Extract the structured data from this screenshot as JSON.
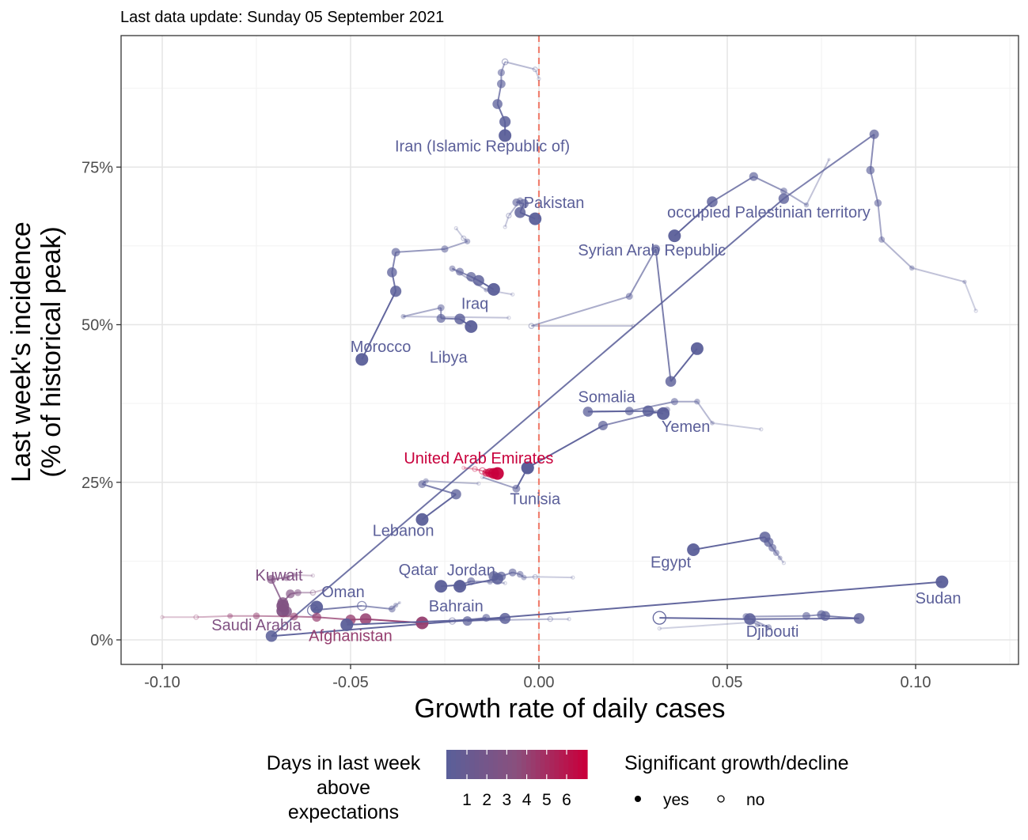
{
  "caption": "Last data update: Sunday 05 September 2021",
  "colors": {
    "low": "#5b5f99",
    "mid": "#8a4f7d",
    "high": "#c8003c",
    "threshold_line": "#f08070",
    "grid_major": "#e6e6e6",
    "grid_minor": "#f2f2f2",
    "panel_border": "#333333"
  },
  "chart_data": {
    "type": "scatter",
    "title": "",
    "xlabel": "Growth rate of daily cases",
    "ylabel_lines": [
      "Last week's incidence",
      "(% of historical peak)"
    ],
    "xlim": [
      -0.12,
      0.127
    ],
    "ylim": [
      -0.04,
      0.96
    ],
    "x_ticks": [
      -0.1,
      -0.05,
      0.0,
      0.05,
      0.1
    ],
    "x_tick_labels": [
      "-0.10",
      "-0.05",
      "0.00",
      "0.05",
      "0.10"
    ],
    "y_ticks": [
      0,
      0.25,
      0.5,
      0.75
    ],
    "y_tick_labels": [
      "0%",
      "25%",
      "50%",
      "75%"
    ],
    "grid": true,
    "threshold_x": 0.0,
    "legend": {
      "position": "bottom",
      "color_title_lines": [
        "Days in last week",
        "above",
        "expectations"
      ],
      "color_labels": [
        "1",
        "2",
        "3",
        "4",
        "5",
        "6"
      ],
      "shape_title": "Significant growth/decline",
      "shape_labels": [
        "yes",
        "no"
      ]
    },
    "series": [
      {
        "name": "Iran (Islamic Republic of)",
        "days": 1,
        "label_text": "Iran (Islamic Republic of)",
        "label_at": [
          -0.015,
          0.775
        ],
        "points": [
          [
            0.0,
            0.89,
            0
          ],
          [
            -0.001,
            0.905,
            0
          ],
          [
            -0.009,
            0.917,
            0
          ],
          [
            -0.01,
            0.9,
            1
          ],
          [
            -0.01,
            0.882,
            1
          ],
          [
            -0.011,
            0.85,
            1
          ],
          [
            -0.009,
            0.822,
            1
          ],
          [
            -0.009,
            0.8,
            1
          ]
        ]
      },
      {
        "name": "Pakistan",
        "days": 1,
        "label_text": "Pakistan",
        "label_at": [
          0.004,
          0.685
        ],
        "points": [
          [
            -0.009,
            0.655,
            0
          ],
          [
            -0.008,
            0.673,
            0
          ],
          [
            -0.005,
            0.697,
            1
          ],
          [
            -0.006,
            0.694,
            1
          ],
          [
            -0.004,
            0.692,
            1
          ],
          [
            -0.005,
            0.678,
            1
          ],
          [
            -0.001,
            0.668,
            1
          ]
        ]
      },
      {
        "name": "occupied Palestinian territory",
        "days": 1,
        "label_text": "occupied Palestinian territory",
        "label_at": [
          0.061,
          0.67
        ],
        "points": [
          [
            0.077,
            0.762,
            1
          ],
          [
            0.071,
            0.69,
            1
          ],
          [
            0.065,
            0.712,
            1
          ],
          [
            0.057,
            0.735,
            1
          ],
          [
            0.046,
            0.695,
            1
          ],
          [
            0.036,
            0.641,
            1
          ]
        ]
      },
      {
        "name": "Sudan",
        "days": 1,
        "label_text": "Sudan",
        "label_at": [
          0.106,
          0.058
        ],
        "points": [
          [
            0.116,
            0.522,
            0
          ],
          [
            0.113,
            0.568,
            1
          ],
          [
            0.099,
            0.59,
            1
          ],
          [
            0.091,
            0.635,
            1
          ],
          [
            0.09,
            0.693,
            1
          ],
          [
            0.088,
            0.745,
            1
          ],
          [
            0.089,
            0.802,
            1
          ],
          [
            0.065,
            0.7,
            1
          ],
          [
            -0.071,
            0.006,
            1
          ],
          [
            0.107,
            0.092,
            1
          ]
        ]
      },
      {
        "name": "Syrian Arab Republic",
        "days": 1,
        "label_text": "Syrian Arab Republic",
        "label_at": [
          0.03,
          0.61
        ],
        "points": [
          [
            0.025,
            0.498,
            0
          ],
          [
            -0.002,
            0.498,
            0
          ],
          [
            0.024,
            0.545,
            1
          ],
          [
            0.031,
            0.62,
            1
          ],
          [
            0.035,
            0.41,
            1
          ],
          [
            0.042,
            0.462,
            1
          ]
        ]
      },
      {
        "name": "Morocco",
        "days": 1,
        "label_text": "Morocco",
        "label_at": [
          -0.042,
          0.457
        ],
        "points": [
          [
            -0.022,
            0.653,
            0
          ],
          [
            -0.02,
            0.637,
            0
          ],
          [
            -0.019,
            0.632,
            1
          ],
          [
            -0.025,
            0.62,
            1
          ],
          [
            -0.038,
            0.615,
            1
          ],
          [
            -0.039,
            0.583,
            1
          ],
          [
            -0.038,
            0.553,
            1
          ],
          [
            -0.047,
            0.445,
            1
          ]
        ]
      },
      {
        "name": "Iraq",
        "days": 1,
        "label_text": "Iraq",
        "label_at": [
          -0.017,
          0.525
        ],
        "points": [
          [
            -0.007,
            0.548,
            0
          ],
          [
            -0.014,
            0.555,
            1
          ],
          [
            -0.023,
            0.589,
            1
          ],
          [
            -0.021,
            0.584,
            1
          ],
          [
            -0.018,
            0.576,
            1
          ],
          [
            -0.016,
            0.57,
            1
          ],
          [
            -0.012,
            0.556,
            1
          ]
        ]
      },
      {
        "name": "Libya",
        "days": 1,
        "label_text": "Libya",
        "label_at": [
          -0.024,
          0.44
        ],
        "points": [
          [
            -0.008,
            0.511,
            0
          ],
          [
            -0.036,
            0.513,
            1
          ],
          [
            -0.026,
            0.527,
            1
          ],
          [
            -0.026,
            0.51,
            1
          ],
          [
            -0.021,
            0.509,
            1
          ],
          [
            -0.018,
            0.497,
            1
          ]
        ]
      },
      {
        "name": "Somalia",
        "days": 1,
        "label_text": "Somalia",
        "label_at": [
          0.018,
          0.377
        ],
        "points": [
          [
            0.059,
            0.334,
            0
          ],
          [
            0.046,
            0.344,
            1
          ],
          [
            0.042,
            0.378,
            1
          ],
          [
            0.036,
            0.378,
            1
          ],
          [
            0.024,
            0.363,
            1
          ],
          [
            0.013,
            0.362,
            1
          ],
          [
            0.029,
            0.363,
            1
          ],
          [
            0.033,
            0.359,
            1
          ]
        ]
      },
      {
        "name": "Yemen",
        "days": 1,
        "label_text": "Yemen",
        "label_at": [
          0.039,
          0.33
        ],
        "points": [
          [
            0.028,
            0.362,
            0
          ],
          [
            0.034,
            0.365,
            1
          ],
          [
            0.017,
            0.34,
            1
          ],
          [
            -0.003,
            0.273,
            1
          ]
        ]
      },
      {
        "name": "United Arab Emirates",
        "days": 6,
        "label_text": "United Arab Emirates",
        "label_at": [
          -0.016,
          0.28
        ],
        "points": [
          [
            -0.02,
            0.273,
            0
          ],
          [
            -0.017,
            0.271,
            0
          ],
          [
            -0.015,
            0.268,
            0
          ],
          [
            -0.014,
            0.265,
            1
          ],
          [
            -0.013,
            0.265,
            1
          ],
          [
            -0.012,
            0.264,
            1
          ],
          [
            -0.011,
            0.264,
            1
          ]
        ]
      },
      {
        "name": "Tunisia",
        "days": 1,
        "label_text": "Tunisia",
        "label_at": [
          -0.001,
          0.215
        ],
        "points": [
          [
            -0.015,
            0.258,
            0
          ],
          [
            -0.006,
            0.24,
            1
          ],
          [
            -0.003,
            0.273,
            1
          ]
        ]
      },
      {
        "name": "Lebanon",
        "days": 1,
        "label_text": "Lebanon",
        "label_at": [
          -0.036,
          0.165
        ],
        "points": [
          [
            -0.016,
            0.248,
            0
          ],
          [
            -0.03,
            0.252,
            1
          ],
          [
            -0.031,
            0.247,
            1
          ],
          [
            -0.022,
            0.231,
            1
          ],
          [
            -0.031,
            0.191,
            1
          ]
        ]
      },
      {
        "name": "Egypt",
        "days": 1,
        "label_text": "Egypt",
        "label_at": [
          0.035,
          0.115
        ],
        "points": [
          [
            0.065,
            0.122,
            0
          ],
          [
            0.064,
            0.13,
            1
          ],
          [
            0.063,
            0.138,
            1
          ],
          [
            0.062,
            0.146,
            1
          ],
          [
            0.061,
            0.155,
            1
          ],
          [
            0.06,
            0.163,
            1
          ],
          [
            0.041,
            0.143,
            1
          ]
        ]
      },
      {
        "name": "Qatar",
        "days": 1,
        "label_text": "Qatar",
        "label_at": [
          -0.032,
          0.103
        ],
        "points": [
          [
            -0.009,
            0.09,
            0
          ],
          [
            -0.013,
            0.092,
            1
          ],
          [
            -0.018,
            0.093,
            1
          ],
          [
            -0.021,
            0.087,
            1
          ],
          [
            -0.026,
            0.085,
            1
          ]
        ]
      },
      {
        "name": "Jordan",
        "days": 1,
        "label_text": "Jordan",
        "label_at": [
          -0.018,
          0.102
        ],
        "points": [
          [
            0.009,
            0.099,
            0
          ],
          [
            -0.001,
            0.1,
            0
          ],
          [
            -0.004,
            0.099,
            1
          ],
          [
            -0.005,
            0.104,
            1
          ],
          [
            -0.007,
            0.107,
            1
          ],
          [
            -0.01,
            0.101,
            1
          ],
          [
            -0.012,
            0.101,
            1
          ],
          [
            -0.011,
            0.097,
            1
          ],
          [
            -0.021,
            0.085,
            1
          ]
        ]
      },
      {
        "name": "Oman",
        "days": 1,
        "label_text": "Oman",
        "label_at": [
          -0.052,
          0.068
        ],
        "points": [
          [
            -0.037,
            0.059,
            1
          ],
          [
            -0.038,
            0.055,
            1
          ],
          [
            -0.039,
            0.049,
            1
          ],
          [
            -0.047,
            0.054,
            0
          ],
          [
            -0.06,
            0.047,
            0
          ],
          [
            -0.059,
            0.052,
            1
          ]
        ]
      },
      {
        "name": "Kuwait",
        "days": 3,
        "label_text": "Kuwait",
        "label_at": [
          -0.069,
          0.094
        ],
        "points": [
          [
            -0.057,
            0.08,
            0
          ],
          [
            -0.06,
            0.075,
            0
          ],
          [
            -0.064,
            0.075,
            1
          ],
          [
            -0.066,
            0.073,
            1
          ],
          [
            -0.068,
            0.059,
            1
          ],
          [
            -0.068,
            0.054,
            1
          ]
        ]
      },
      {
        "name": "Saudi Arabia",
        "days": 3,
        "label_text": "Saudi Arabia",
        "label_at": [
          -0.075,
          0.015
        ],
        "points": [
          [
            -0.06,
            0.102,
            0
          ],
          [
            -0.065,
            0.103,
            1
          ],
          [
            -0.067,
            0.099,
            1
          ],
          [
            -0.071,
            0.096,
            1
          ],
          [
            -0.067,
            0.045,
            1
          ],
          [
            -0.068,
            0.046,
            1
          ]
        ]
      },
      {
        "name": "Afghanistan",
        "days": 4,
        "label_text": "Afghanistan",
        "label_at": [
          -0.05,
          -0.002
        ],
        "points": [
          [
            -0.1,
            0.036,
            0
          ],
          [
            -0.091,
            0.036,
            0
          ],
          [
            -0.082,
            0.038,
            1
          ],
          [
            -0.075,
            0.038,
            1
          ],
          [
            -0.065,
            0.037,
            1
          ],
          [
            -0.059,
            0.036,
            1
          ],
          [
            -0.05,
            0.032,
            1
          ],
          [
            -0.046,
            0.033,
            1
          ],
          [
            -0.031,
            0.027,
            1
          ]
        ]
      },
      {
        "name": "Bahrain",
        "days": 1,
        "label_text": "Bahrain",
        "label_at": [
          -0.022,
          0.045
        ],
        "points": [
          [
            0.008,
            0.033,
            0
          ],
          [
            0.003,
            0.033,
            0
          ],
          [
            -0.023,
            0.03,
            0
          ],
          [
            -0.014,
            0.035,
            1
          ],
          [
            -0.019,
            0.03,
            1
          ],
          [
            -0.009,
            0.034,
            1
          ],
          [
            -0.051,
            0.024,
            1
          ]
        ]
      },
      {
        "name": "Djibouti",
        "days": 1,
        "label_text": "Djibouti",
        "label_at": [
          0.062,
          0.005
        ],
        "points": [
          [
            0.032,
            0.018,
            0
          ],
          [
            0.057,
            0.028,
            1
          ],
          [
            0.058,
            0.024,
            1
          ],
          [
            0.061,
            0.02,
            1
          ],
          [
            0.055,
            0.037,
            1
          ],
          [
            0.071,
            0.038,
            1
          ],
          [
            0.075,
            0.04,
            1
          ],
          [
            0.076,
            0.038,
            1
          ],
          [
            0.085,
            0.034,
            1
          ],
          [
            0.056,
            0.033,
            1
          ],
          [
            0.032,
            0.035,
            0
          ]
        ]
      }
    ]
  }
}
